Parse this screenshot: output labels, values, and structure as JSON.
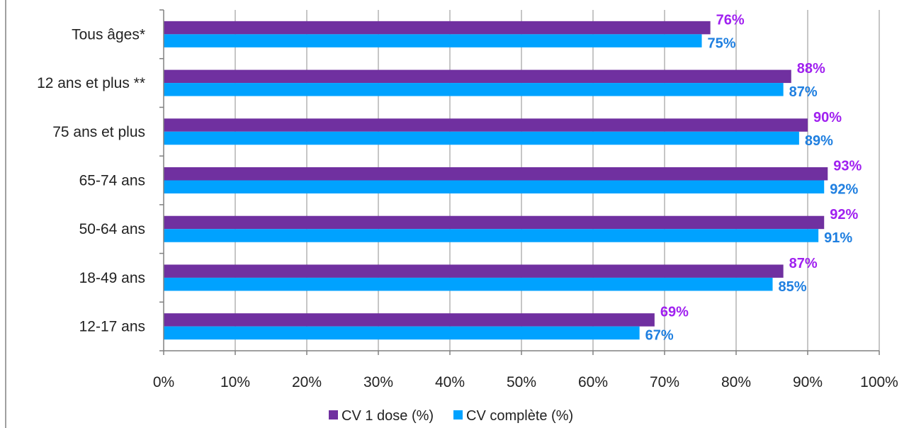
{
  "chart_data": {
    "type": "bar",
    "orientation": "horizontal",
    "categories": [
      "Tous âges*",
      "12 ans et plus **",
      "75 ans et plus",
      "65-74 ans",
      "50-64 ans",
      "18-49 ans",
      "12-17 ans"
    ],
    "series": [
      {
        "name": "CV 1 dose (%)",
        "color": "#7030a0",
        "label_color": "#a020f0",
        "values": [
          76.4,
          87.7,
          90.0,
          92.8,
          92.3,
          86.6,
          68.6
        ],
        "labels": [
          "76%",
          "88%",
          "90%",
          "93%",
          "92%",
          "87%",
          "69%"
        ]
      },
      {
        "name": "CV complète (%)",
        "color": "#00a2ff",
        "label_color": "#1f7fe0",
        "values": [
          75.2,
          86.6,
          88.8,
          92.3,
          91.5,
          85.1,
          66.5
        ],
        "labels": [
          "75%",
          "87%",
          "89%",
          "92%",
          "91%",
          "85%",
          "67%"
        ]
      }
    ],
    "xlim": [
      0,
      100
    ],
    "xticks": [
      0,
      10,
      20,
      30,
      40,
      50,
      60,
      70,
      80,
      90,
      100
    ],
    "xtick_labels": [
      "0%",
      "10%",
      "20%",
      "30%",
      "40%",
      "50%",
      "60%",
      "70%",
      "80%",
      "90%",
      "100%"
    ],
    "grid": true,
    "legend_position": "bottom"
  }
}
